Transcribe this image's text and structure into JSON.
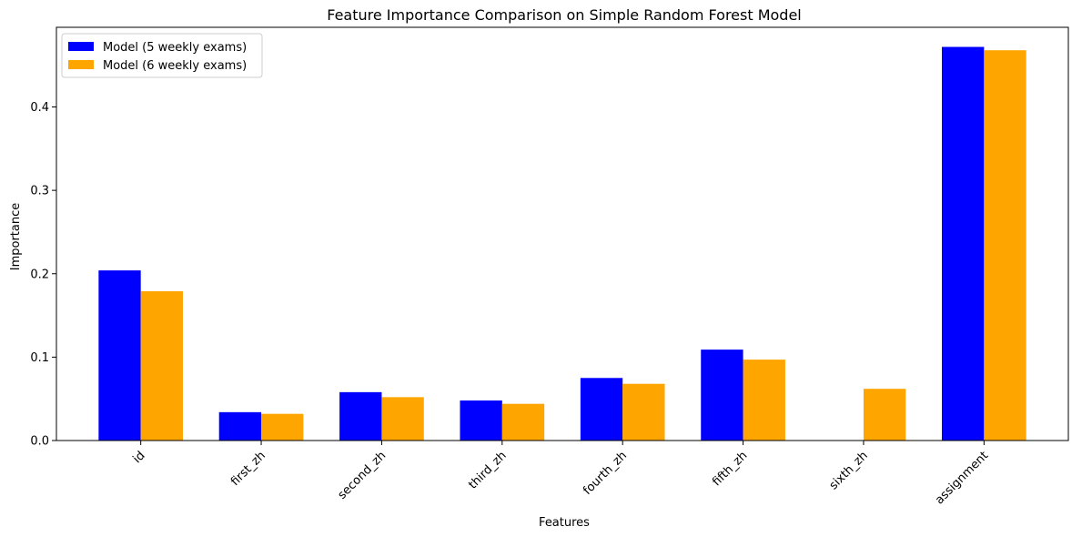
{
  "chart_data": {
    "type": "bar",
    "title": "Feature Importance Comparison on Simple Random Forest Model",
    "xlabel": "Features",
    "ylabel": "Importance",
    "categories": [
      "id",
      "first_zh",
      "second_zh",
      "third_zh",
      "fourth_zh",
      "fifth_zh",
      "sixth_zh",
      "assignment"
    ],
    "series": [
      {
        "name": "Model (5 weekly exams)",
        "color": "#0000ff",
        "values": [
          0.204,
          0.034,
          0.058,
          0.048,
          0.075,
          0.109,
          null,
          0.472
        ]
      },
      {
        "name": "Model (6 weekly exams)",
        "color": "#ffa500",
        "values": [
          0.179,
          0.032,
          0.052,
          0.044,
          0.068,
          0.097,
          0.062,
          0.468
        ]
      }
    ],
    "ylim": [
      0,
      0.4955
    ],
    "yticks": [
      0.0,
      0.1,
      0.2,
      0.3,
      0.4
    ],
    "ytick_labels": [
      "0.0",
      "0.1",
      "0.2",
      "0.3",
      "0.4"
    ],
    "xtick_rotation": "45deg",
    "grid": false,
    "legend_position": "upper-left"
  }
}
